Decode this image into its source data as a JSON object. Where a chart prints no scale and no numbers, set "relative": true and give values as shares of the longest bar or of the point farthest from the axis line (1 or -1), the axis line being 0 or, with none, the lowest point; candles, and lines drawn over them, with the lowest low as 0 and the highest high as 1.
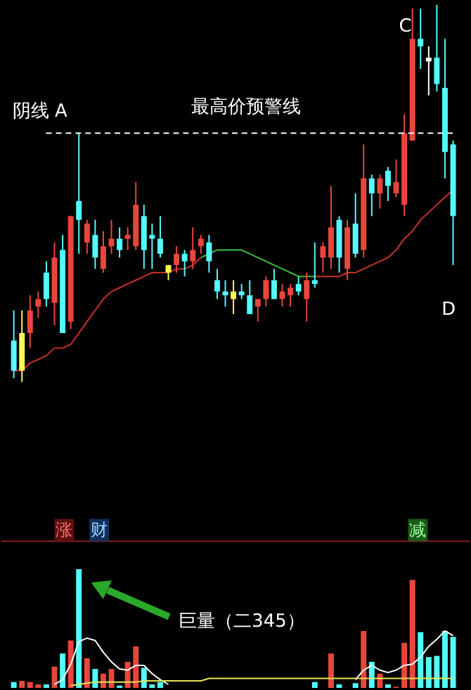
{
  "chart_data": [
    {
      "type": "candlestick",
      "relative": true,
      "categories": [
        null,
        null,
        null,
        null,
        null,
        null,
        null,
        null,
        null,
        null,
        null,
        null,
        null,
        null,
        null,
        null,
        null,
        null,
        null,
        null,
        null,
        null,
        null,
        null,
        null,
        null,
        null,
        null,
        null,
        null,
        null,
        null,
        null,
        null,
        null,
        null,
        null,
        null,
        null,
        null,
        null,
        null,
        null,
        null,
        null,
        null,
        null,
        null,
        null,
        null,
        null,
        null,
        null,
        null,
        null
      ],
      "ohlc": [
        [
          0.11,
          0.19,
          0.01,
          0.03
        ],
        [
          0.13,
          0.19,
          0.0,
          0.03
        ],
        [
          0.13,
          0.23,
          0.09,
          0.19
        ],
        [
          0.2,
          0.24,
          0.17,
          0.22
        ],
        [
          0.29,
          0.32,
          0.2,
          0.22
        ],
        [
          0.21,
          0.37,
          0.15,
          0.33
        ],
        [
          0.35,
          0.39,
          0.13,
          0.13
        ],
        [
          0.16,
          0.44,
          0.14,
          0.44
        ],
        [
          0.48,
          0.66,
          0.34,
          0.43
        ],
        [
          0.37,
          0.43,
          0.34,
          0.42
        ],
        [
          0.39,
          0.43,
          0.3,
          0.33
        ],
        [
          0.3,
          0.4,
          0.29,
          0.36
        ],
        [
          0.36,
          0.43,
          0.34,
          0.38
        ],
        [
          0.38,
          0.41,
          0.33,
          0.35
        ],
        [
          0.38,
          0.41,
          0.35,
          0.39
        ],
        [
          0.36,
          0.53,
          0.35,
          0.47
        ],
        [
          0.44,
          0.47,
          0.3,
          0.35
        ],
        [
          0.39,
          0.42,
          0.3,
          0.38
        ],
        [
          0.38,
          0.44,
          0.33,
          0.34
        ],
        [
          0.31,
          0.31,
          0.27,
          0.29
        ],
        [
          0.31,
          0.36,
          0.29,
          0.34
        ],
        [
          0.34,
          0.35,
          0.28,
          0.32
        ],
        [
          0.32,
          0.41,
          0.3,
          0.35
        ],
        [
          0.36,
          0.39,
          0.34,
          0.38
        ],
        [
          0.37,
          0.39,
          0.29,
          0.32
        ],
        [
          0.27,
          0.3,
          0.22,
          0.24
        ],
        [
          0.24,
          0.27,
          0.2,
          0.23
        ],
        [
          0.24,
          0.27,
          0.18,
          0.22
        ],
        [
          0.24,
          0.26,
          0.22,
          0.23
        ],
        [
          0.23,
          0.27,
          0.18,
          0.18
        ],
        [
          0.2,
          0.22,
          0.16,
          0.22
        ],
        [
          0.22,
          0.28,
          0.2,
          0.27
        ],
        [
          0.27,
          0.3,
          0.22,
          0.22
        ],
        [
          0.22,
          0.26,
          0.2,
          0.24
        ],
        [
          0.23,
          0.26,
          0.2,
          0.25
        ],
        [
          0.26,
          0.28,
          0.23,
          0.24
        ],
        [
          0.22,
          0.29,
          0.16,
          0.27
        ],
        [
          0.27,
          0.37,
          0.25,
          0.26
        ],
        [
          0.33,
          0.37,
          0.29,
          0.36
        ],
        [
          0.33,
          0.52,
          0.3,
          0.41
        ],
        [
          0.43,
          0.44,
          0.29,
          0.33
        ],
        [
          0.3,
          0.43,
          0.27,
          0.41
        ],
        [
          0.42,
          0.5,
          0.33,
          0.34
        ],
        [
          0.35,
          0.63,
          0.33,
          0.54
        ],
        [
          0.54,
          0.55,
          0.44,
          0.5
        ],
        [
          0.5,
          0.55,
          0.46,
          0.54
        ],
        [
          0.56,
          0.57,
          0.48,
          0.52
        ],
        [
          0.5,
          0.59,
          0.49,
          0.53
        ],
        [
          0.47,
          0.71,
          0.44,
          0.66
        ],
        [
          0.64,
          0.99,
          0.64,
          0.91
        ],
        [
          0.91,
          0.99,
          0.83,
          0.89
        ],
        [
          0.86,
          0.89,
          0.76,
          0.85
        ],
        [
          0.86,
          1.0,
          0.77,
          0.79
        ],
        [
          0.78,
          0.91,
          0.54,
          0.61
        ],
        [
          0.63,
          0.64,
          0.31,
          0.44
        ]
      ],
      "colors": [
        "#54fcfc",
        "#fcfc54",
        "#e8463c",
        "#e8463c",
        "#54fcfc",
        "#e8463c",
        "#54fcfc",
        "#e8463c",
        "#54fcfc",
        "#e8463c",
        "#54fcfc",
        "#e8463c",
        "#e8463c",
        "#54fcfc",
        "#e8463c",
        "#e8463c",
        "#54fcfc",
        "#54fcfc",
        "#54fcfc",
        "#fcfc54",
        "#e8463c",
        "#54fcfc",
        "#e8463c",
        "#e8463c",
        "#54fcfc",
        "#54fcfc",
        "#54fcfc",
        "#fcfc54",
        "#54fcfc",
        "#54fcfc",
        "#e8463c",
        "#e8463c",
        "#54fcfc",
        "#e8463c",
        "#e8463c",
        "#54fcfc",
        "#e8463c",
        "#54fcfc",
        "#e8463c",
        "#e8463c",
        "#54fcfc",
        "#e8463c",
        "#54fcfc",
        "#e8463c",
        "#54fcfc",
        "#e8463c",
        "#54fcfc",
        "#e8463c",
        "#e8463c",
        "#e8463c",
        "#54fcfc",
        "#ffffff",
        "#54fcfc",
        "#54fcfc",
        "#54fcfc"
      ],
      "series": [
        {
          "type": "line",
          "color": "#c8302c",
          "values": [
            0.03,
            0.03,
            0.05,
            0.06,
            0.07,
            0.09,
            0.09,
            0.1,
            0.13,
            0.16,
            0.19,
            0.22,
            0.24,
            0.25,
            0.26,
            0.27,
            0.28,
            0.29,
            0.29,
            0.29,
            0.3,
            0.3,
            0.31,
            0.33,
            null,
            null,
            null,
            null,
            null,
            null,
            null,
            null,
            null,
            null,
            null,
            null,
            null,
            0.28,
            0.28,
            0.28,
            0.28,
            0.29,
            0.29,
            0.3,
            0.31,
            0.32,
            0.33,
            0.35,
            0.38,
            0.4,
            0.43,
            0.45,
            0.47,
            0.49,
            0.51
          ]
        },
        {
          "type": "line",
          "color": "#3cbe3c",
          "values": [
            null,
            null,
            null,
            null,
            null,
            null,
            null,
            null,
            null,
            null,
            null,
            null,
            null,
            null,
            null,
            null,
            null,
            null,
            null,
            null,
            null,
            null,
            null,
            0.33,
            0.34,
            0.35,
            0.35,
            0.35,
            0.35,
            0.34,
            0.33,
            0.32,
            0.31,
            0.3,
            0.29,
            0.28,
            0.28,
            0.28,
            null,
            null,
            null,
            null,
            null,
            null,
            null,
            null,
            null,
            null,
            null,
            null,
            null,
            null,
            null,
            null,
            null
          ]
        }
      ],
      "ref_lines": [
        {
          "axis": "y",
          "value": 0.66,
          "color": "#ffffff",
          "line_style": "dashed"
        }
      ],
      "annotations": [
        "阴线 A",
        "最高价预警线",
        "C",
        "D"
      ]
    },
    {
      "type": "bar",
      "relative": true,
      "categories": [
        null,
        null,
        null,
        null,
        null,
        null,
        null,
        null,
        null,
        null,
        null,
        null,
        null,
        null,
        null,
        null,
        null,
        null,
        null,
        null,
        null,
        null,
        null,
        null,
        null,
        null,
        null,
        null,
        null,
        null,
        null,
        null,
        null,
        null,
        null,
        null,
        null,
        null,
        null,
        null,
        null,
        null,
        null,
        null,
        null,
        null,
        null,
        null,
        null,
        null,
        null,
        null,
        null,
        null,
        null
      ],
      "values": [
        0.05,
        0.06,
        0.05,
        0.03,
        0.03,
        0.18,
        0.29,
        0.4,
        1,
        0.25,
        0.16,
        0.12,
        0.16,
        0.02,
        0.22,
        0.35,
        0.17,
        0.03,
        0.05,
        null,
        null,
        null,
        null,
        null,
        null,
        null,
        null,
        null,
        null,
        null,
        null,
        null,
        null,
        null,
        null,
        null,
        null,
        0.05,
        null,
        0.29,
        0.03,
        null,
        0.04,
        0.48,
        0.22,
        0.12,
        0.03,
        0.01,
        0.38,
        0.91,
        0.47,
        0.26,
        0.27,
        0.48,
        0.43
      ],
      "colors": [
        "#54fcfc",
        "#e8463c",
        "#e8463c",
        "#e8463c",
        "#54fcfc",
        "#e8463c",
        "#54fcfc",
        "#e8463c",
        "#54fcfc",
        "#e8463c",
        "#54fcfc",
        "#e8463c",
        "#e8463c",
        "#54fcfc",
        "#e8463c",
        "#e8463c",
        "#54fcfc",
        "#54fcfc",
        "#54fcfc",
        "#fcfc54",
        "#e8463c",
        "#54fcfc",
        "#e8463c",
        "#e8463c",
        "#54fcfc",
        "#54fcfc",
        "#54fcfc",
        "#fcfc54",
        "#54fcfc",
        "#54fcfc",
        "#e8463c",
        "#e8463c",
        "#54fcfc",
        "#e8463c",
        "#e8463c",
        "#54fcfc",
        "#e8463c",
        "#54fcfc",
        "#e8463c",
        "#e8463c",
        "#54fcfc",
        "#e8463c",
        "#54fcfc",
        "#e8463c",
        "#54fcfc",
        "#e8463c",
        "#54fcfc",
        "#e8463c",
        "#e8463c",
        "#e8463c",
        "#54fcfc",
        "#54fcfc",
        "#54fcfc",
        "#54fcfc",
        "#54fcfc"
      ],
      "series": [
        {
          "type": "line",
          "color": "#ffffff",
          "values": [
            null,
            null,
            null,
            null,
            null,
            0.03,
            0.07,
            0.2,
            0.39,
            0.42,
            0.4,
            0.3,
            0.22,
            0.16,
            0.15,
            0.19,
            0.19,
            0.12,
            0.07,
            0.03,
            null,
            null,
            null,
            null,
            null,
            null,
            null,
            null,
            null,
            null,
            null,
            null,
            null,
            null,
            null,
            null,
            null,
            null,
            null,
            null,
            null,
            null,
            0.07,
            0.15,
            0.19,
            0.15,
            0.13,
            0.15,
            0.19,
            0.2,
            0.26,
            0.35,
            0.41,
            0.48,
            0.44
          ]
        },
        {
          "type": "line",
          "color": "#e6e65a",
          "values": [
            null,
            null,
            null,
            null,
            null,
            null,
            null,
            0.02,
            0.03,
            0.04,
            0.05,
            0.05,
            0.05,
            0.05,
            0.05,
            0.05,
            0.06,
            0.06,
            0.06,
            0.06,
            0.06,
            0.06,
            0.06,
            0.06,
            0.08,
            0.08,
            0.08,
            0.08,
            0.08,
            0.08,
            0.08,
            0.08,
            0.08,
            0.08,
            0.08,
            0.08,
            0.08,
            0.08,
            0.08,
            0.08,
            0.08,
            0.08,
            0.08,
            0.08,
            0.08,
            0.08,
            0.08,
            0.08,
            0.08,
            0.08,
            0.08,
            0.08,
            0.08,
            0.08,
            0.08
          ]
        }
      ],
      "annotations": [
        "涨",
        "财",
        "减",
        "巨量（二345）"
      ]
    }
  ]
}
